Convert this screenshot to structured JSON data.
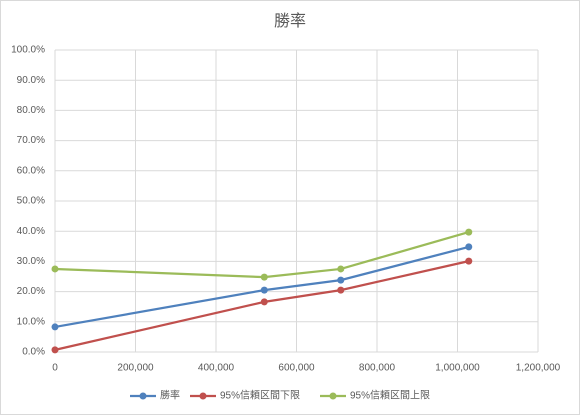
{
  "chart_data": {
    "type": "line",
    "title": "勝率",
    "x": [
      0,
      520000,
      710000,
      1028000
    ],
    "series": [
      {
        "name": "勝率",
        "color": "#4f81bd",
        "values": [
          8.3,
          20.5,
          23.8,
          34.8
        ]
      },
      {
        "name": "95%信頼区間下限",
        "color": "#c0504d",
        "values": [
          0.7,
          16.6,
          20.5,
          30.1
        ]
      },
      {
        "name": "95%信頼区間上限",
        "color": "#9bbb59",
        "values": [
          27.5,
          24.8,
          27.5,
          39.7
        ]
      }
    ],
    "xlim": [
      0,
      1200000
    ],
    "xticks": [
      0,
      {
        "value": 200000,
        "label": "200,000"
      },
      {
        "value": 400000,
        "label": "400,000"
      },
      {
        "value": 600000,
        "label": "600,000"
      },
      {
        "value": 800000,
        "label": "800,000"
      },
      {
        "value": 1000000,
        "label": "1,000,000"
      },
      {
        "value": 1200000,
        "label": "1,200,000"
      }
    ],
    "ylim": [
      0,
      100
    ],
    "yticks": [
      {
        "value": 0,
        "label": "0.0%"
      },
      {
        "value": 10,
        "label": "10.0%"
      },
      {
        "value": 20,
        "label": "20.0%"
      },
      {
        "value": 30,
        "label": "30.0%"
      },
      {
        "value": 40,
        "label": "40.0%"
      },
      {
        "value": 50,
        "label": "50.0%"
      },
      {
        "value": 60,
        "label": "60.0%"
      },
      {
        "value": 70,
        "label": "70.0%"
      },
      {
        "value": 80,
        "label": "80.0%"
      },
      {
        "value": 90,
        "label": "90.0%"
      },
      {
        "value": 100,
        "label": "100.0%"
      }
    ],
    "grid": true,
    "legend": "bottom"
  }
}
